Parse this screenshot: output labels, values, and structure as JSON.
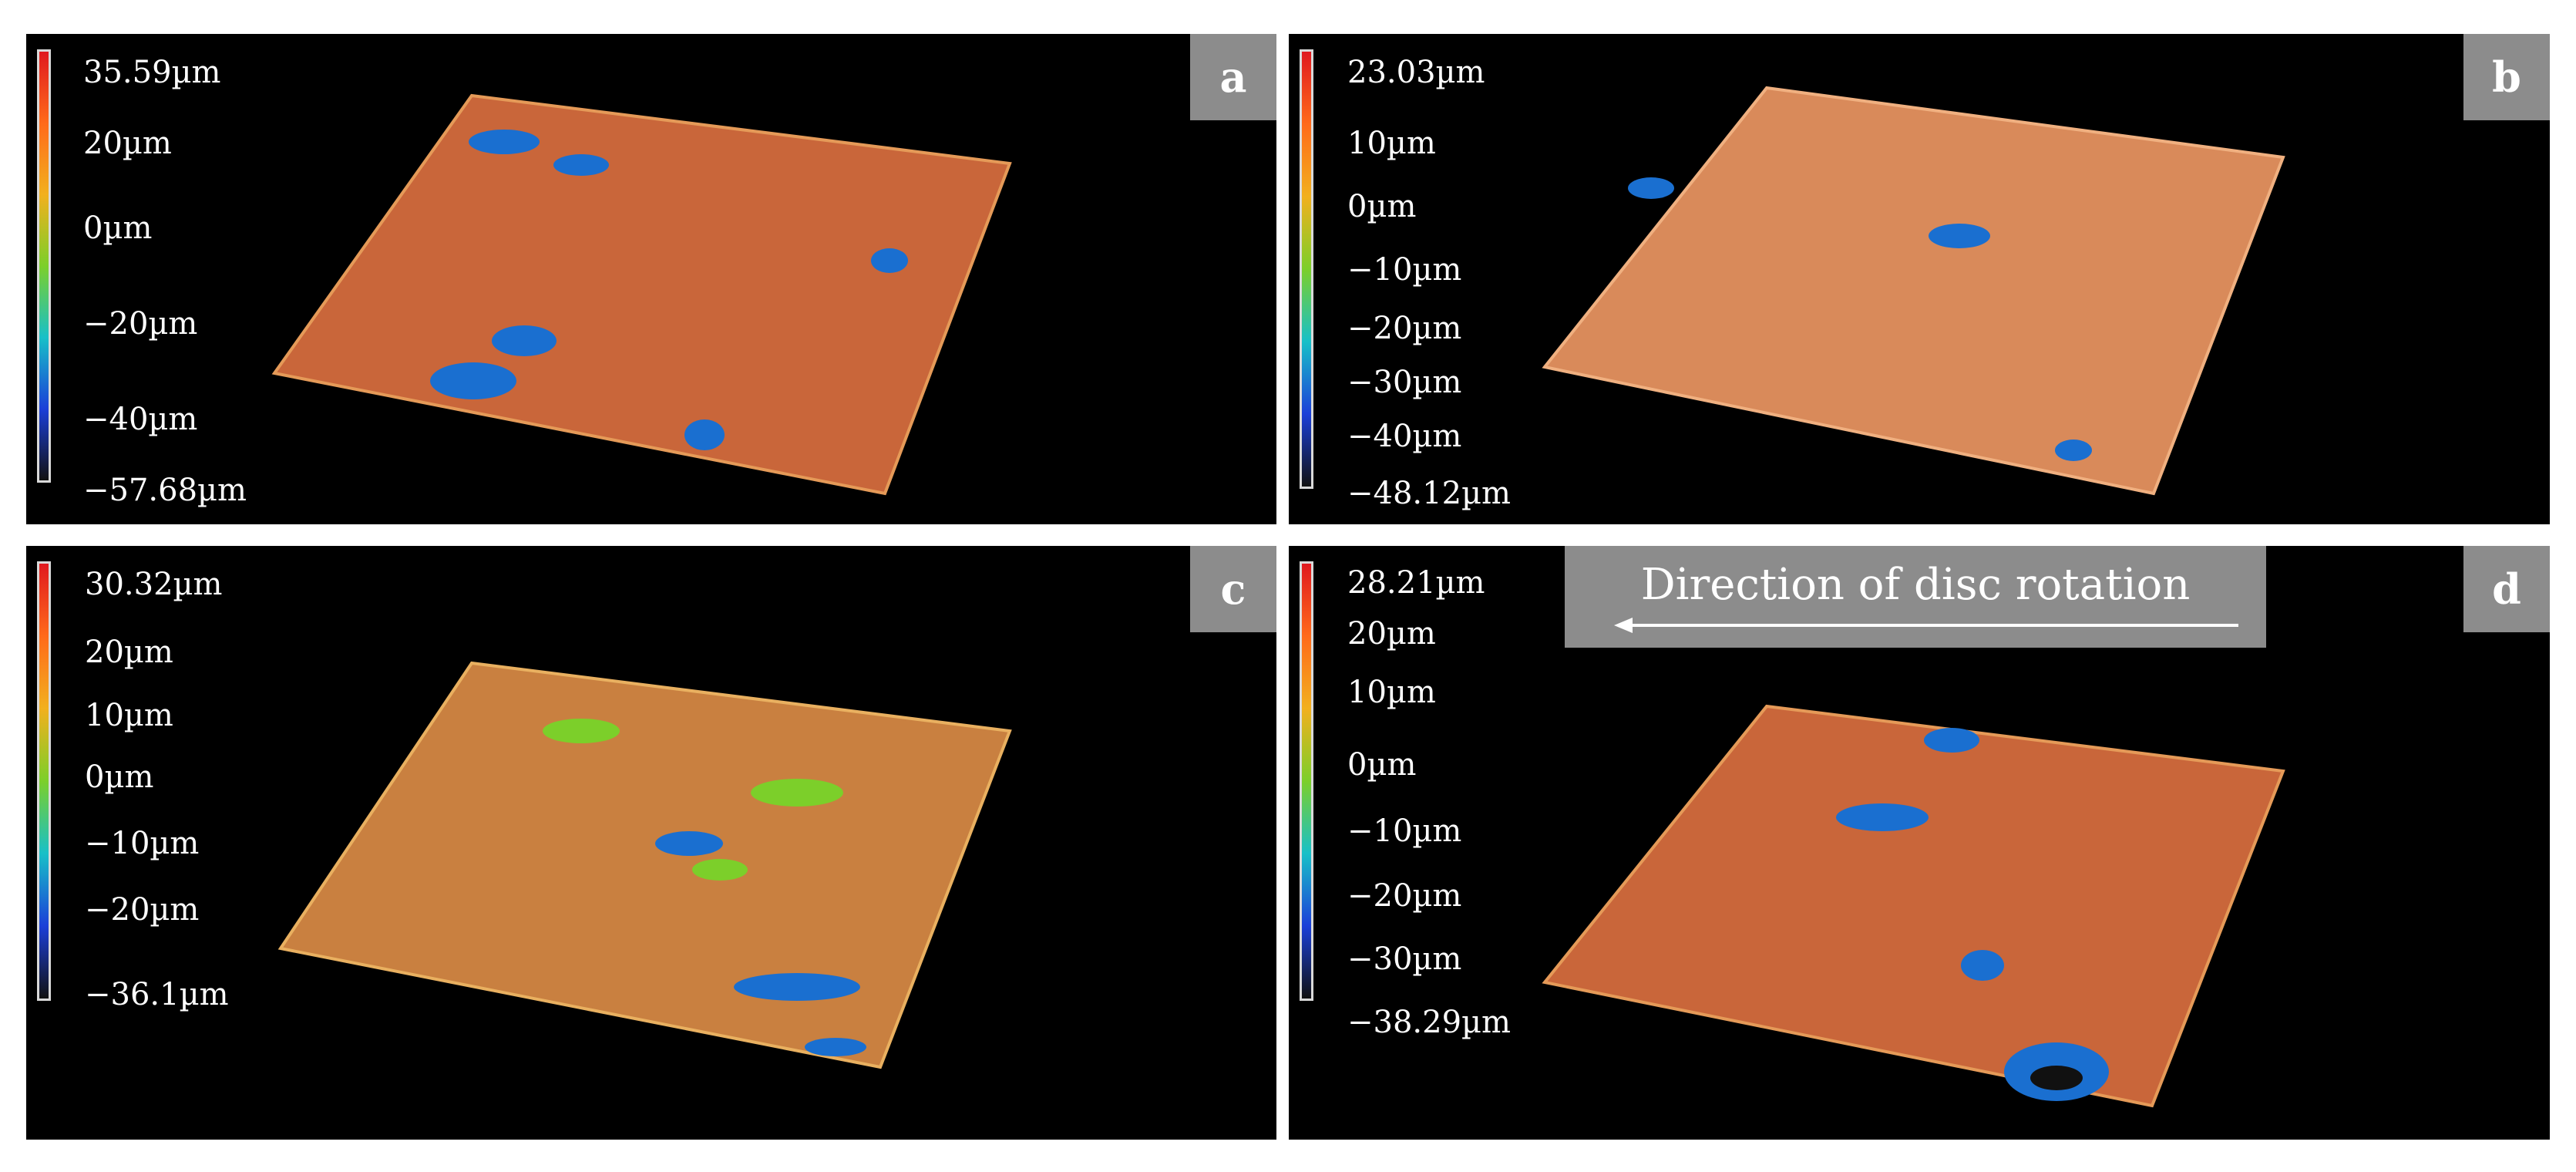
{
  "panels": [
    {
      "letter": "a",
      "colorbar": {
        "colors": [
          "#e0191f",
          "#ff6a1a",
          "#f2b01e",
          "#7ccf2a",
          "#18c0c8",
          "#1b3fd8",
          "#111111"
        ]
      },
      "ticks": [
        "35.59µm",
        "20µm",
        "0µm",
        "−20µm",
        "−40µm",
        "−57.68µm"
      ],
      "surface": {
        "base_color": "#c9663a",
        "defect_color": "#1a6fd0"
      }
    },
    {
      "letter": "b",
      "colorbar": {
        "colors": [
          "#e0191f",
          "#ff6a1a",
          "#f2b01e",
          "#7ccf2a",
          "#18c0c8",
          "#1b3fd8",
          "#111111"
        ]
      },
      "ticks": [
        "23.03µm",
        "10µm",
        "0µm",
        "−10µm",
        "−20µm",
        "−30µm",
        "−40µm",
        "−48.12µm"
      ],
      "surface": {
        "base_color": "#d98a5a",
        "defect_color": "#1a6fd0"
      }
    },
    {
      "letter": "c",
      "colorbar": {
        "colors": [
          "#e0191f",
          "#ff6a1a",
          "#f2b01e",
          "#7ccf2a",
          "#18c0c8",
          "#1b3fd8",
          "#111111"
        ]
      },
      "ticks": [
        "30.32µm",
        "20µm",
        "10µm",
        "0µm",
        "−10µm",
        "−20µm",
        "−36.1µm"
      ],
      "surface": {
        "base_color": "#c98040",
        "defect_color": "#1a6fd0"
      }
    },
    {
      "letter": "d",
      "colorbar": {
        "colors": [
          "#e0191f",
          "#ff6a1a",
          "#f2b01e",
          "#7ccf2a",
          "#18c0c8",
          "#1b3fd8",
          "#111111"
        ]
      },
      "ticks": [
        "28.21µm",
        "20µm",
        "10µm",
        "0µm",
        "−10µm",
        "−20µm",
        "−30µm",
        "−38.29µm"
      ],
      "surface": {
        "base_color": "#c9663a",
        "defect_color": "#1a6fd0"
      }
    }
  ],
  "rotation_label": "Direction of disc rotation",
  "arrow_direction": "left"
}
